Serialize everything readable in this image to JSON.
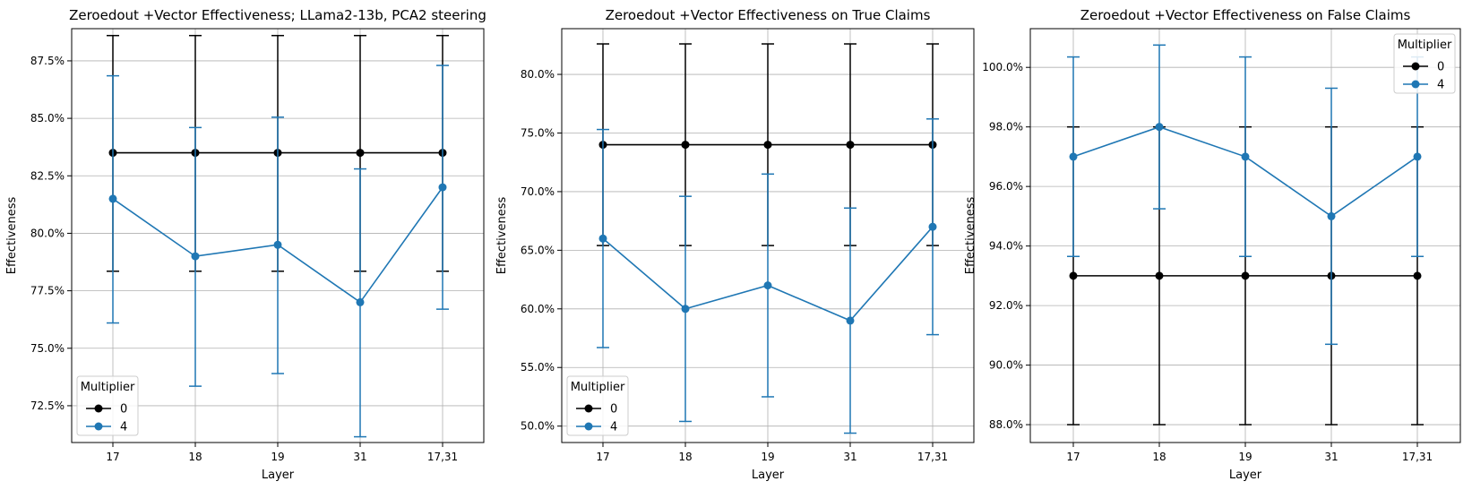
{
  "chart_data": [
    {
      "type": "line",
      "title": "Zeroedout +Vector Effectiveness; LLama2-13b, PCA2 steering",
      "xlabel": "Layer",
      "ylabel": "Effectiveness",
      "categories": [
        "17",
        "18",
        "19",
        "31",
        "17,31"
      ],
      "ylim": [
        70.9,
        88.9
      ],
      "yticks": [
        72.5,
        75.0,
        77.5,
        80.0,
        82.5,
        85.0,
        87.5
      ],
      "ytick_labels": [
        "72.5%",
        "75.0%",
        "77.5%",
        "80.0%",
        "82.5%",
        "85.0%",
        "87.5%"
      ],
      "grid": true,
      "legend": {
        "title": "Multiplier",
        "position": "lower-left"
      },
      "series": [
        {
          "name": "0",
          "color": "#000000",
          "values": [
            83.5,
            83.5,
            83.5,
            83.5,
            83.5
          ],
          "err_low": [
            78.35,
            78.35,
            78.35,
            78.35,
            78.35
          ],
          "err_high": [
            88.6,
            88.6,
            88.6,
            88.6,
            88.6
          ]
        },
        {
          "name": "4",
          "color": "#1f77b4",
          "values": [
            81.5,
            79.0,
            79.5,
            77.0,
            82.0
          ],
          "err_low": [
            76.1,
            73.35,
            73.9,
            71.15,
            76.7
          ],
          "err_high": [
            86.85,
            84.6,
            85.05,
            82.8,
            87.3
          ]
        }
      ]
    },
    {
      "type": "line",
      "title": "Zeroedout +Vector Effectiveness on True Claims",
      "xlabel": "Layer",
      "ylabel": "Effectiveness",
      "categories": [
        "17",
        "18",
        "19",
        "31",
        "17,31"
      ],
      "ylim": [
        48.6,
        83.9
      ],
      "yticks": [
        50.0,
        55.0,
        60.0,
        65.0,
        70.0,
        75.0,
        80.0
      ],
      "ytick_labels": [
        "50.0%",
        "55.0%",
        "60.0%",
        "65.0%",
        "70.0%",
        "75.0%",
        "80.0%"
      ],
      "grid": true,
      "legend": {
        "title": "Multiplier",
        "position": "lower-left"
      },
      "series": [
        {
          "name": "0",
          "color": "#000000",
          "values": [
            74.0,
            74.0,
            74.0,
            74.0,
            74.0
          ],
          "err_low": [
            65.4,
            65.4,
            65.4,
            65.4,
            65.4
          ],
          "err_high": [
            82.6,
            82.6,
            82.6,
            82.6,
            82.6
          ]
        },
        {
          "name": "4",
          "color": "#1f77b4",
          "values": [
            66.0,
            60.0,
            62.0,
            59.0,
            67.0
          ],
          "err_low": [
            56.7,
            50.4,
            52.5,
            49.4,
            57.8
          ],
          "err_high": [
            75.3,
            69.6,
            71.5,
            68.6,
            76.2
          ]
        }
      ]
    },
    {
      "type": "line",
      "title": "Zeroedout +Vector Effectiveness on False Claims",
      "xlabel": "Layer",
      "ylabel": "Effectiveness",
      "categories": [
        "17",
        "18",
        "19",
        "31",
        "17,31"
      ],
      "ylim": [
        87.4,
        101.3
      ],
      "yticks": [
        88.0,
        90.0,
        92.0,
        94.0,
        96.0,
        98.0,
        100.0
      ],
      "ytick_labels": [
        "88.0%",
        "90.0%",
        "92.0%",
        "94.0%",
        "96.0%",
        "98.0%",
        "100.0%"
      ],
      "grid": true,
      "legend": {
        "title": "Multiplier",
        "position": "upper-right"
      },
      "series": [
        {
          "name": "0",
          "color": "#000000",
          "values": [
            93.0,
            93.0,
            93.0,
            93.0,
            93.0
          ],
          "err_low": [
            88.0,
            88.0,
            88.0,
            88.0,
            88.0
          ],
          "err_high": [
            98.0,
            98.0,
            98.0,
            98.0,
            98.0
          ]
        },
        {
          "name": "4",
          "color": "#1f77b4",
          "values": [
            97.0,
            98.0,
            97.0,
            95.0,
            97.0
          ],
          "err_low": [
            93.65,
            95.25,
            93.65,
            90.7,
            93.65
          ],
          "err_high": [
            100.35,
            100.75,
            100.35,
            99.3,
            100.35
          ]
        }
      ]
    }
  ]
}
